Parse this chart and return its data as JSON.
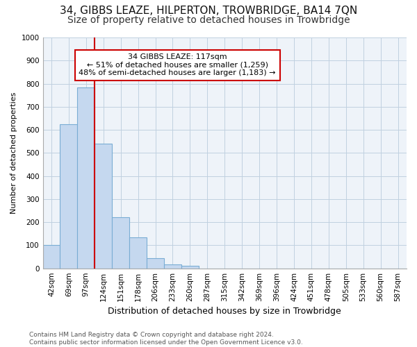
{
  "title": "34, GIBBS LEAZE, HILPERTON, TROWBRIDGE, BA14 7QN",
  "subtitle": "Size of property relative to detached houses in Trowbridge",
  "xlabel": "Distribution of detached houses by size in Trowbridge",
  "ylabel": "Number of detached properties",
  "categories": [
    "42sqm",
    "69sqm",
    "97sqm",
    "124sqm",
    "151sqm",
    "178sqm",
    "206sqm",
    "233sqm",
    "260sqm",
    "287sqm",
    "315sqm",
    "342sqm",
    "369sqm",
    "396sqm",
    "424sqm",
    "451sqm",
    "478sqm",
    "505sqm",
    "533sqm",
    "560sqm",
    "587sqm"
  ],
  "values": [
    100,
    625,
    785,
    540,
    220,
    135,
    45,
    18,
    10,
    0,
    0,
    0,
    0,
    0,
    0,
    0,
    0,
    0,
    0,
    0,
    0
  ],
  "bar_color": "#c5d8ef",
  "bar_edgecolor": "#7aadd4",
  "vline_x": 2.5,
  "annotation_text": "34 GIBBS LEAZE: 117sqm\n← 51% of detached houses are smaller (1,259)\n48% of semi-detached houses are larger (1,183) →",
  "annotation_box_color": "#ffffff",
  "annotation_box_edgecolor": "#cc0000",
  "vline_color": "#cc0000",
  "ylim": [
    0,
    1000
  ],
  "yticks": [
    0,
    100,
    200,
    300,
    400,
    500,
    600,
    700,
    800,
    900,
    1000
  ],
  "footer": "Contains HM Land Registry data © Crown copyright and database right 2024.\nContains public sector information licensed under the Open Government Licence v3.0.",
  "bg_color": "#ffffff",
  "plot_bg_color": "#eef3f9",
  "grid_color": "#c0d0e0",
  "title_fontsize": 11,
  "subtitle_fontsize": 10,
  "xlabel_fontsize": 9,
  "ylabel_fontsize": 8,
  "tick_fontsize": 7.5,
  "annotation_fontsize": 8,
  "footer_fontsize": 6.5
}
